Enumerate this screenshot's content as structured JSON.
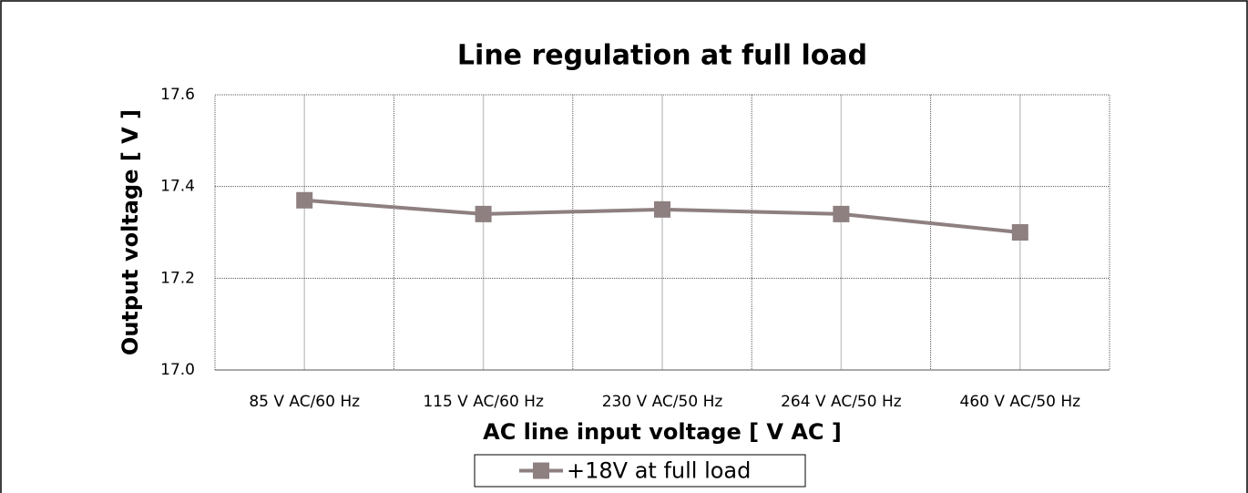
{
  "chart_data": {
    "type": "line",
    "title": "Line regulation at full load",
    "x_label": "AC line input voltage [ V AC ]",
    "y_label": "Output voltage [ V ]",
    "categories": [
      "85 V AC/60 Hz",
      "115 V AC/60 Hz",
      "230 V AC/50 Hz",
      "264 V AC/50 Hz",
      "460 V AC/50 Hz"
    ],
    "series": [
      {
        "name": "+18V at full load",
        "color": "#8e7f80",
        "values": [
          17.37,
          17.34,
          17.35,
          17.34,
          17.3
        ]
      }
    ],
    "ylim": [
      17.0,
      17.6
    ],
    "yticks": [
      {
        "value": 17,
        "label": "17.0"
      },
      17.2,
      17.4,
      17.6
    ],
    "grid": true,
    "legend": "bottom"
  }
}
